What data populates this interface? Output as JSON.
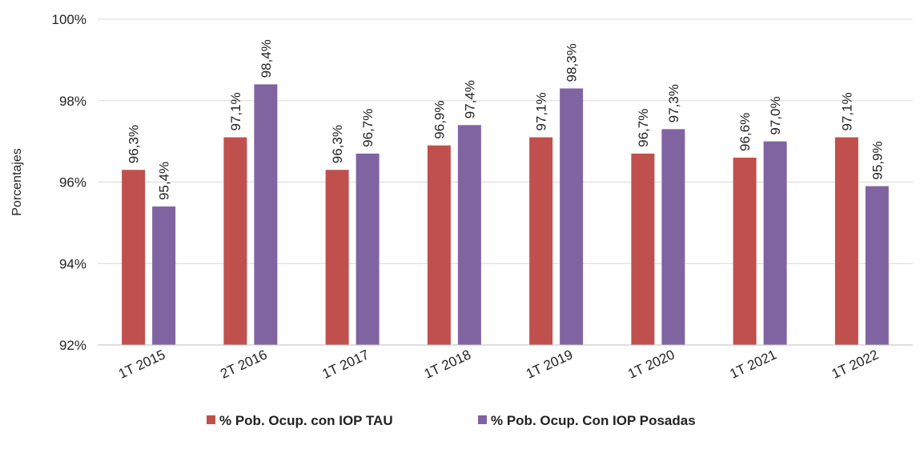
{
  "chart_data": {
    "type": "bar",
    "title": "",
    "xlabel": "",
    "ylabel": "Porcentajes",
    "ylim": [
      92,
      100
    ],
    "y_ticks": [
      "92%",
      "94%",
      "96%",
      "98%",
      "100%"
    ],
    "grid": true,
    "legend_position": "bottom",
    "categories": [
      "1T 2015",
      "2T 2016",
      "1T 2017",
      "1T 2018",
      "1T 2019",
      "1T 2020",
      "1T 2021",
      "1T 2022"
    ],
    "series": [
      {
        "name": "% Pob. Ocup. con IOP TAU",
        "color": "#C0504D",
        "values": [
          96.3,
          97.1,
          96.3,
          96.9,
          97.1,
          96.7,
          96.6,
          97.1
        ],
        "labels": [
          "96,3%",
          "97,1%",
          "96,3%",
          "96,9%",
          "97,1%",
          "96,7%",
          "96,6%",
          "97,1%"
        ]
      },
      {
        "name": "% Pob. Ocup. Con IOP Posadas",
        "color": "#8064A2",
        "values": [
          95.4,
          98.4,
          96.7,
          97.4,
          98.3,
          97.3,
          97.0,
          95.9
        ],
        "labels": [
          "95,4%",
          "98,4%",
          "96,7%",
          "97,4%",
          "98,3%",
          "97,3%",
          "97,0%",
          "95,9%"
        ]
      }
    ]
  }
}
